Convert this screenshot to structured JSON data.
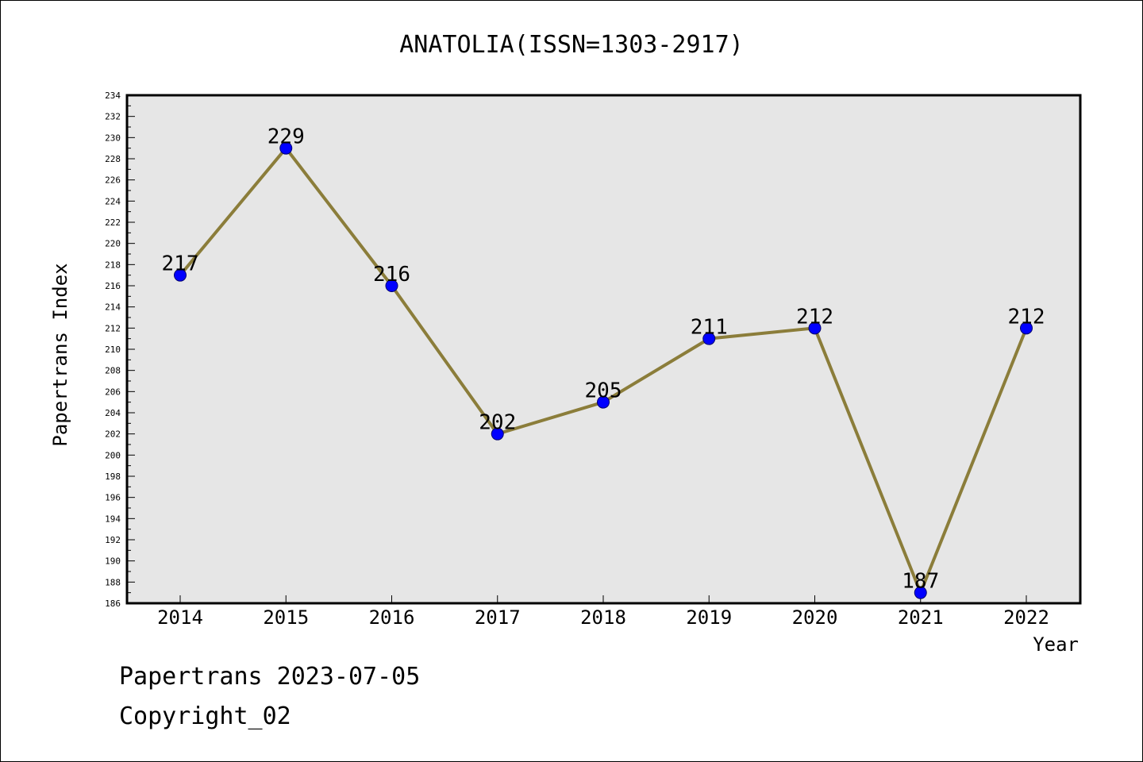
{
  "chart_data": {
    "type": "line",
    "title": "ANATOLIA(ISSN=1303-2917)",
    "xlabel": "Year",
    "ylabel": "Papertrans Index",
    "categories": [
      "2014",
      "2015",
      "2016",
      "2017",
      "2018",
      "2019",
      "2020",
      "2021",
      "2022"
    ],
    "series": [
      {
        "values": [
          217,
          229,
          216,
          202,
          205,
          211,
          212,
          187,
          212
        ],
        "line_color": "#8b7d3a",
        "marker_color": "#0000ff"
      }
    ],
    "ylim": [
      186,
      234
    ],
    "y_tick_step": 2,
    "grid": false,
    "plot_background": "#e6e6e6"
  },
  "footer": {
    "line1": "Papertrans 2023-07-05",
    "line2": "Copyright_02"
  }
}
